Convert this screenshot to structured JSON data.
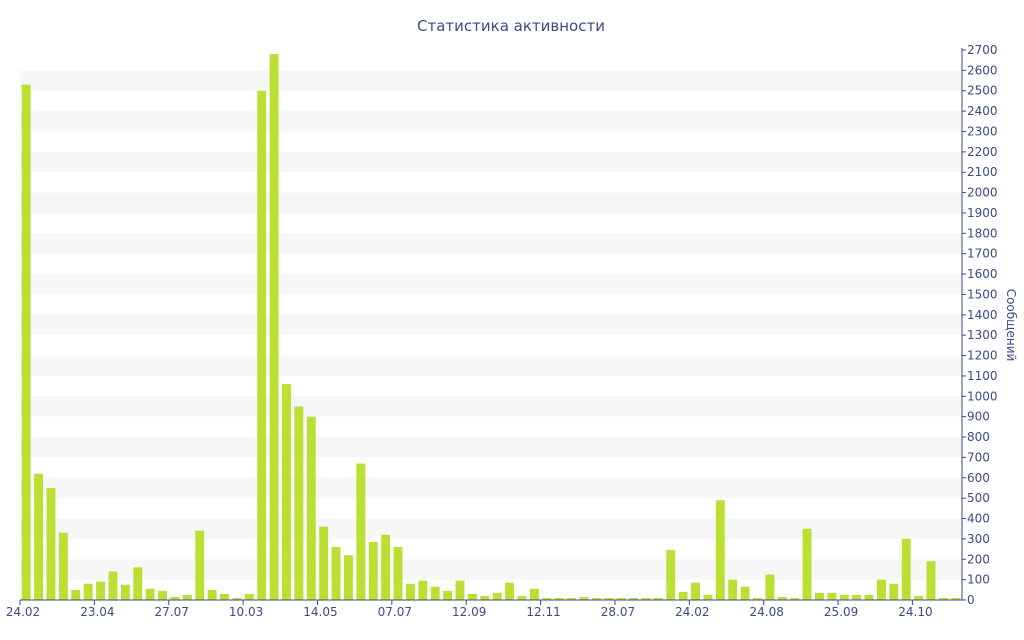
{
  "chart_data": {
    "type": "bar",
    "title": "Статистика активности",
    "xlabel": "",
    "ylabel": "Сообщений",
    "ylim": [
      0,
      2700
    ],
    "y_ticks": [
      0,
      100,
      200,
      300,
      400,
      500,
      600,
      700,
      800,
      900,
      1000,
      1100,
      1200,
      1300,
      1400,
      1500,
      1600,
      1700,
      1800,
      1900,
      2000,
      2100,
      2200,
      2300,
      2400,
      2500,
      2600,
      2700
    ],
    "y_axis_position": "right",
    "grid": "alternating horizontal bands",
    "bar_color": "#bbdf32",
    "x_tick_labels": [
      {
        "label": "24.02",
        "index": 0
      },
      {
        "label": "23.04",
        "index": 6
      },
      {
        "label": "27.07",
        "index": 12
      },
      {
        "label": "10.03",
        "index": 18
      },
      {
        "label": "14.05",
        "index": 24
      },
      {
        "label": "07.07",
        "index": 30
      },
      {
        "label": "12.09",
        "index": 36
      },
      {
        "label": "12.11",
        "index": 42
      },
      {
        "label": "28.07",
        "index": 48
      },
      {
        "label": "24.02",
        "index": 54
      },
      {
        "label": "24.08",
        "index": 60
      },
      {
        "label": "25.09",
        "index": 66
      },
      {
        "label": "24.10",
        "index": 72
      }
    ],
    "values": [
      2530,
      620,
      550,
      330,
      50,
      80,
      90,
      140,
      75,
      160,
      55,
      45,
      15,
      25,
      340,
      50,
      30,
      10,
      30,
      2500,
      2680,
      1060,
      950,
      900,
      360,
      260,
      220,
      670,
      285,
      320,
      260,
      80,
      95,
      65,
      45,
      95,
      30,
      20,
      35,
      85,
      20,
      55,
      10,
      10,
      10,
      15,
      10,
      10,
      10,
      10,
      10,
      10,
      245,
      40,
      85,
      25,
      490,
      100,
      65,
      10,
      125,
      15,
      10,
      350,
      35,
      35,
      25,
      25,
      25,
      100,
      80,
      300,
      20,
      190,
      10,
      10
    ]
  }
}
